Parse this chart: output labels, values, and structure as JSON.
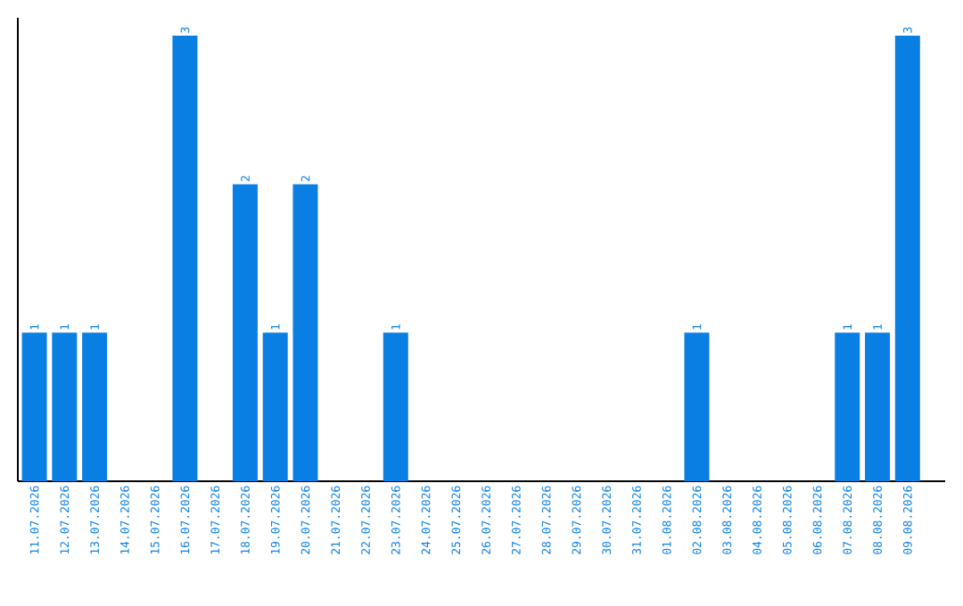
{
  "chart_data": {
    "type": "bar",
    "categories": [
      "11.07.2026",
      "12.07.2026",
      "13.07.2026",
      "14.07.2026",
      "15.07.2026",
      "16.07.2026",
      "17.07.2026",
      "18.07.2026",
      "19.07.2026",
      "20.07.2026",
      "21.07.2026",
      "22.07.2026",
      "23.07.2026",
      "24.07.2026",
      "25.07.2026",
      "26.07.2026",
      "27.07.2026",
      "28.07.2026",
      "29.07.2026",
      "30.07.2026",
      "31.07.2026",
      "01.08.2026",
      "02.08.2026",
      "03.08.2026",
      "04.08.2026",
      "05.08.2026",
      "06.08.2026",
      "07.08.2026",
      "08.08.2026",
      "09.08.2026"
    ],
    "values": [
      1,
      1,
      1,
      0,
      0,
      3,
      0,
      2,
      1,
      2,
      0,
      0,
      1,
      0,
      0,
      0,
      0,
      0,
      0,
      0,
      0,
      0,
      1,
      0,
      0,
      0,
      0,
      1,
      1,
      3
    ],
    "value_labels": [
      "1",
      "1",
      "1",
      null,
      null,
      "3",
      null,
      "2",
      "1",
      "2",
      null,
      null,
      "1",
      null,
      null,
      null,
      null,
      null,
      null,
      null,
      null,
      null,
      "1",
      null,
      null,
      null,
      null,
      "1",
      "1",
      "3"
    ],
    "color": "#0a7fe3"
  }
}
